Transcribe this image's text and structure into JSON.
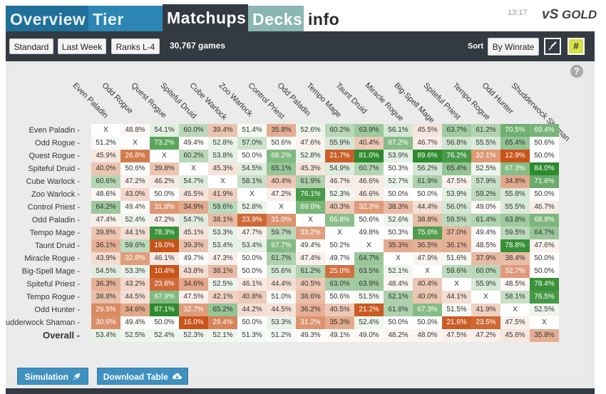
{
  "nav": {
    "tabs": [
      "Overview",
      "Tier List",
      "Matchups",
      "Decks",
      "info"
    ],
    "active": "Matchups",
    "clock": "13:17",
    "logo_prefix": "vS",
    "logo_text": "GOLD"
  },
  "toolbar": {
    "format": "Standard",
    "period": "Last Week",
    "ranks": "Ranks L-4",
    "games": "30,767 games",
    "sort_label": "Sort",
    "sort_value": "By Winrate",
    "hash_label": "#"
  },
  "matrix": {
    "columns": [
      "Even Paladin",
      "Odd Rogue",
      "Quest Rogue",
      "Spiteful Druid",
      "Cube Warlock",
      "Zoo Warlock",
      "Control Priest",
      "Odd Paladin",
      "Tempo Mage",
      "Taunt Druid",
      "Miracle Rogue",
      "Big-Spell Mage",
      "Spiteful Priest",
      "Tempo Rogue",
      "Odd Hunter",
      "Shudderwock Shaman"
    ],
    "row_labels": [
      "Even Paladin -",
      "Odd Rogue -",
      "Quest Rogue -",
      "Spiteful Druid -",
      "Cube Warlock -",
      "Zoo Warlock -",
      "Control Priest -",
      "Odd Paladin -",
      "Tempo Mage -",
      "Taunt Druid -",
      "Miracle Rogue -",
      "Big-Spell Mage -",
      "Spiteful Priest -",
      "Tempo Rogue -",
      "Odd Hunter -",
      "udderwock Shaman -"
    ],
    "overall_label": "Overall -",
    "rows": [
      [
        "X",
        "48.8%",
        "54.1%",
        "60.0%",
        "39.4%",
        "51.4%",
        "35.8%",
        "52.6%",
        "60.2%",
        "63.9%",
        "56.1%",
        "45.5%",
        "63.7%",
        "61.2%",
        "70.5%",
        "69.4%"
      ],
      [
        "51.2%",
        "X",
        "73.2%",
        "49.4%",
        "52.8%",
        "57.0%",
        "50.6%",
        "47.6%",
        "55.9%",
        "40.4%",
        "67.2%",
        "46.7%",
        "56.8%",
        "55.5%",
        "65.4%",
        "50.6%"
      ],
      [
        "45.9%",
        "26.8%",
        "X",
        "60.2%",
        "53.8%",
        "50.0%",
        "68.2%",
        "52.8%",
        "21.7%",
        "81.0%",
        "53.9%",
        "89.6%",
        "76.2%",
        "32.1%",
        "12.9%",
        "50.0%"
      ],
      [
        "40.0%",
        "50.6%",
        "39.8%",
        "X",
        "45.3%",
        "54.5%",
        "65.1%",
        "45.3%",
        "54.9%",
        "60.7%",
        "50.3%",
        "56.2%",
        "65.4%",
        "52.5%",
        "67.3%",
        "84.0%"
      ],
      [
        "60.6%",
        "47.2%",
        "46.2%",
        "54.7%",
        "X",
        "58.1%",
        "40.4%",
        "61.9%",
        "46.7%",
        "46.6%",
        "52.7%",
        "61.9%",
        "47.5%",
        "57.9%",
        "34.8%",
        "71.6%"
      ],
      [
        "48.6%",
        "43.0%",
        "50.0%",
        "45.5%",
        "41.9%",
        "X",
        "47.2%",
        "76.1%",
        "52.3%",
        "46.6%",
        "50.0%",
        "50.0%",
        "53.9%",
        "59.2%",
        "55.8%",
        "50.0%"
      ],
      [
        "64.2%",
        "49.4%",
        "31.8%",
        "34.9%",
        "59.6%",
        "52.8%",
        "X",
        "69.0%",
        "40.3%",
        "32.3%",
        "38.3%",
        "44.4%",
        "56.0%",
        "49.0%",
        "55.5%",
        "46.7%"
      ],
      [
        "47.4%",
        "52.4%",
        "47.2%",
        "54.7%",
        "38.1%",
        "23.9%",
        "31.0%",
        "X",
        "66.8%",
        "50.6%",
        "52.6%",
        "38.8%",
        "59.5%",
        "61.4%",
        "63.8%",
        "68.8%"
      ],
      [
        "39.8%",
        "44.1%",
        "78.3%",
        "45.1%",
        "53.3%",
        "47.7%",
        "59.7%",
        "33.2%",
        "X",
        "49.8%",
        "50.3%",
        "75.0%",
        "37.0%",
        "49.4%",
        "59.5%",
        "64.7%"
      ],
      [
        "36.1%",
        "59.6%",
        "19.0%",
        "39.3%",
        "53.4%",
        "53.4%",
        "67.7%",
        "49.4%",
        "50.2%",
        "X",
        "35.3%",
        "36.5%",
        "36.1%",
        "48.5%",
        "78.8%",
        "47.6%"
      ],
      [
        "43.9%",
        "32.8%",
        "46.1%",
        "49.7%",
        "47.3%",
        "50.0%",
        "61.7%",
        "47.4%",
        "49.7%",
        "64.7%",
        "X",
        "47.9%",
        "51.6%",
        "37.9%",
        "38.4%",
        "50.0%"
      ],
      [
        "54.5%",
        "53.3%",
        "10.4%",
        "43.8%",
        "38.1%",
        "50.0%",
        "55.6%",
        "61.2%",
        "25.0%",
        "63.5%",
        "52.1%",
        "X",
        "59.6%",
        "60.0%",
        "32.7%",
        "50.0%"
      ],
      [
        "36.3%",
        "43.2%",
        "23.8%",
        "34.6%",
        "52.5%",
        "46.1%",
        "44.4%",
        "40.5%",
        "63.0%",
        "63.9%",
        "48.4%",
        "40.4%",
        "X",
        "55.9%",
        "48.5%",
        "78.4%"
      ],
      [
        "38.8%",
        "44.5%",
        "67.9%",
        "47.5%",
        "42.1%",
        "40.8%",
        "51.0%",
        "38.6%",
        "50.6%",
        "51.5%",
        "62.1%",
        "40.0%",
        "44.1%",
        "X",
        "58.1%",
        "76.5%"
      ],
      [
        "29.5%",
        "34.6%",
        "87.1%",
        "32.7%",
        "65.2%",
        "44.2%",
        "44.5%",
        "36.2%",
        "40.5%",
        "21.2%",
        "61.6%",
        "67.3%",
        "51.5%",
        "41.9%",
        "X",
        "52.5%"
      ],
      [
        "30.6%",
        "49.4%",
        "50.0%",
        "16.0%",
        "28.4%",
        "50.0%",
        "53.3%",
        "31.2%",
        "35.3%",
        "52.4%",
        "50.0%",
        "50.0%",
        "21.6%",
        "23.5%",
        "47.5%",
        "X"
      ]
    ],
    "overall": [
      "53.4%",
      "52.5%",
      "52.4%",
      "52.3%",
      "52.1%",
      "51.3%",
      "51.2%",
      "49.3%",
      "49.1%",
      "49.0%",
      "48.2%",
      "48.0%",
      "47.5%",
      "47.2%",
      "45.6%",
      "35.8%"
    ]
  },
  "bottom": {
    "simulation_label": "Simulation",
    "download_label": "Download Table"
  },
  "colors": {
    "nav_dark": "#333a42",
    "win_strong": "#2e8b2e",
    "loss_strong": "#c8541a"
  }
}
